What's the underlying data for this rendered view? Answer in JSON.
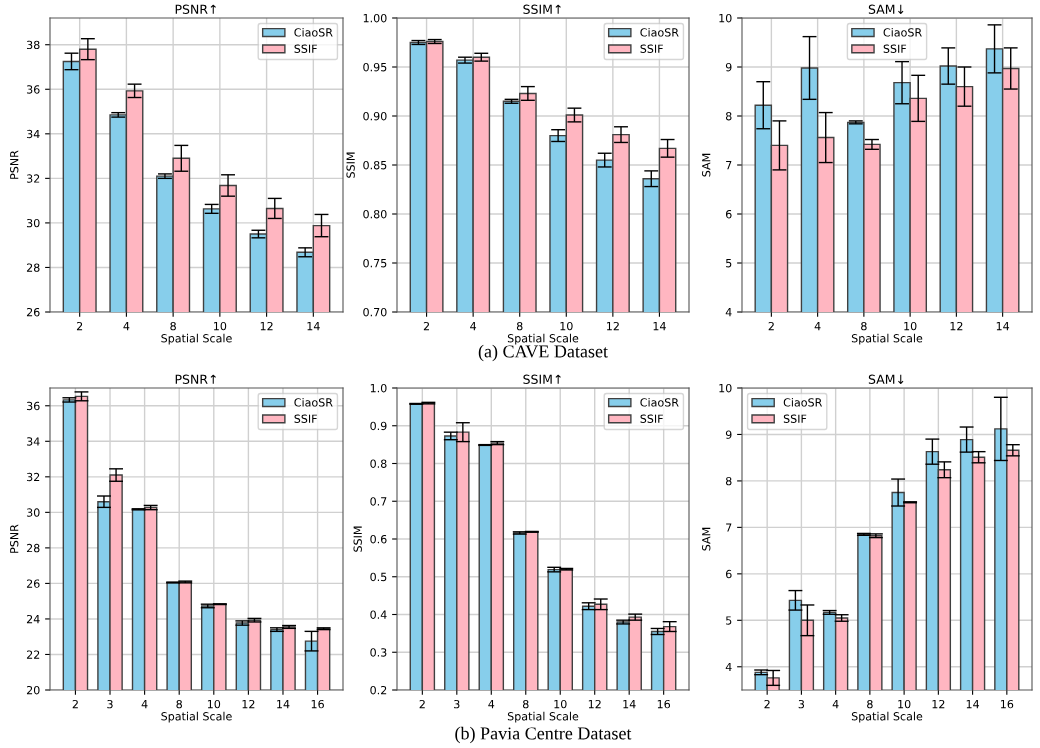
{
  "chart_data": [
    {
      "type": "bar",
      "title": "PSNR↑",
      "xlabel": "Spatial Scale",
      "ylabel": "PSNR",
      "categories": [
        "2",
        "4",
        "8",
        "10",
        "12",
        "14"
      ],
      "ylim": [
        26,
        39.2
      ],
      "yticks": [
        26,
        28,
        30,
        32,
        34,
        36,
        38
      ],
      "grid": true,
      "legend": "top right",
      "series": [
        {
          "name": "CiaoSR",
          "color": "#87ceeb",
          "values": [
            37.25,
            34.85,
            32.1,
            30.63,
            29.5,
            28.68
          ],
          "errors": [
            0.37,
            0.1,
            0.1,
            0.2,
            0.17,
            0.2
          ]
        },
        {
          "name": "SSIF",
          "color": "#ffb6c1",
          "values": [
            37.8,
            35.93,
            32.9,
            31.68,
            30.65,
            29.88
          ],
          "errors": [
            0.47,
            0.3,
            0.58,
            0.48,
            0.45,
            0.5
          ]
        }
      ]
    },
    {
      "type": "bar",
      "title": "SSIM↑",
      "xlabel": "Spatial Scale",
      "ylabel": "SSIM",
      "categories": [
        "2",
        "4",
        "8",
        "10",
        "12",
        "14"
      ],
      "ylim": [
        0.7,
        1.0
      ],
      "yticks": [
        {
          "value": 0.7,
          "label": "0.70"
        },
        {
          "value": 0.75,
          "label": "0.75"
        },
        {
          "value": 0.8,
          "label": "0.80"
        },
        {
          "value": 0.85,
          "label": "0.85"
        },
        {
          "value": 0.9,
          "label": "0.90"
        },
        {
          "value": 0.95,
          "label": "0.95"
        },
        {
          "value": 1.0,
          "label": "1.00"
        }
      ],
      "grid": true,
      "legend": "top right",
      "annotations": [
        "(a) CAVE Dataset"
      ],
      "series": [
        {
          "name": "CiaoSR",
          "color": "#87ceeb",
          "values": [
            0.975,
            0.957,
            0.915,
            0.88,
            0.855,
            0.836
          ],
          "errors": [
            0.002,
            0.003,
            0.002,
            0.006,
            0.007,
            0.008
          ]
        },
        {
          "name": "SSIF",
          "color": "#ffb6c1",
          "values": [
            0.976,
            0.96,
            0.923,
            0.901,
            0.881,
            0.867
          ],
          "errors": [
            0.002,
            0.004,
            0.007,
            0.007,
            0.008,
            0.009
          ]
        }
      ]
    },
    {
      "type": "bar",
      "title": "SAM↓",
      "xlabel": "Spatial Scale",
      "ylabel": "SAM",
      "categories": [
        "2",
        "4",
        "8",
        "10",
        "12",
        "14"
      ],
      "ylim": [
        4,
        10
      ],
      "yticks": [
        4,
        5,
        6,
        7,
        8,
        9,
        10
      ],
      "grid": true,
      "legend": "top",
      "series": [
        {
          "name": "CiaoSR",
          "color": "#87ceeb",
          "values": [
            8.22,
            8.98,
            7.87,
            8.68,
            9.02,
            9.37
          ],
          "errors": [
            0.48,
            0.64,
            0.03,
            0.43,
            0.37,
            0.49
          ]
        },
        {
          "name": "SSIF",
          "color": "#ffb6c1",
          "values": [
            7.4,
            7.56,
            7.42,
            8.36,
            8.6,
            8.97
          ],
          "errors": [
            0.5,
            0.51,
            0.1,
            0.47,
            0.4,
            0.42
          ]
        }
      ]
    },
    {
      "type": "bar",
      "title": "PSNR↑",
      "xlabel": "Spatial Scale",
      "ylabel": "PSNR",
      "categories": [
        "2",
        "3",
        "4",
        "8",
        "10",
        "12",
        "14",
        "16"
      ],
      "ylim": [
        20,
        37
      ],
      "yticks": [
        20,
        22,
        24,
        26,
        28,
        30,
        32,
        34,
        36
      ],
      "grid": true,
      "legend": "top right",
      "series": [
        {
          "name": "CiaoSR",
          "color": "#87ceeb",
          "values": [
            36.33,
            30.6,
            30.17,
            26.05,
            24.73,
            23.77,
            23.4,
            22.75
          ],
          "errors": [
            0.12,
            0.32,
            0.03,
            0.02,
            0.1,
            0.12,
            0.1,
            0.55
          ]
        },
        {
          "name": "SSIF",
          "color": "#ffb6c1",
          "values": [
            36.53,
            32.1,
            30.27,
            26.08,
            24.83,
            23.93,
            23.55,
            23.45
          ],
          "errors": [
            0.25,
            0.35,
            0.12,
            0.05,
            0.02,
            0.1,
            0.08,
            0.05
          ]
        }
      ]
    },
    {
      "type": "bar",
      "title": "SSIM↑",
      "xlabel": "Spatial Scale",
      "ylabel": "SSIM",
      "categories": [
        "2",
        "3",
        "4",
        "8",
        "10",
        "12",
        "14",
        "16"
      ],
      "ylim": [
        0.2,
        1.0
      ],
      "yticks": [
        0.2,
        0.3,
        0.4,
        0.5,
        0.6,
        0.7,
        0.8,
        0.9,
        {
          "value": 1.0,
          "label": "1.0"
        }
      ],
      "grid": true,
      "legend": "top right",
      "annotations": [
        "(b) Pavia Centre Dataset"
      ],
      "series": [
        {
          "name": "CiaoSR",
          "color": "#87ceeb",
          "values": [
            0.958,
            0.873,
            0.849,
            0.616,
            0.519,
            0.422,
            0.38,
            0.355
          ],
          "errors": [
            0.001,
            0.01,
            0.001,
            0.003,
            0.006,
            0.009,
            0.005,
            0.008
          ]
        },
        {
          "name": "SSIF",
          "color": "#ffb6c1",
          "values": [
            0.96,
            0.883,
            0.854,
            0.619,
            0.52,
            0.427,
            0.393,
            0.368
          ],
          "errors": [
            0.002,
            0.025,
            0.004,
            0.001,
            0.002,
            0.014,
            0.008,
            0.013
          ]
        }
      ]
    },
    {
      "type": "bar",
      "title": "SAM↓",
      "xlabel": "Spatial Scale",
      "ylabel": "SAM",
      "categories": [
        "2",
        "3",
        "4",
        "8",
        "10",
        "12",
        "14",
        "16"
      ],
      "ylim": [
        3.5,
        10
      ],
      "yticks": [
        4,
        5,
        6,
        7,
        8,
        9,
        10
      ],
      "grid": true,
      "legend": "top left",
      "series": [
        {
          "name": "CiaoSR",
          "color": "#87ceeb",
          "values": [
            3.88,
            5.43,
            5.17,
            6.85,
            7.75,
            8.63,
            8.89,
            9.12
          ],
          "errors": [
            0.05,
            0.21,
            0.04,
            0.02,
            0.29,
            0.27,
            0.27,
            0.68
          ]
        },
        {
          "name": "SSIF",
          "color": "#ffb6c1",
          "values": [
            3.76,
            5.0,
            5.05,
            6.82,
            7.54,
            8.24,
            8.51,
            8.66
          ],
          "errors": [
            0.16,
            0.33,
            0.07,
            0.04,
            0.01,
            0.17,
            0.12,
            0.12
          ]
        }
      ]
    }
  ]
}
